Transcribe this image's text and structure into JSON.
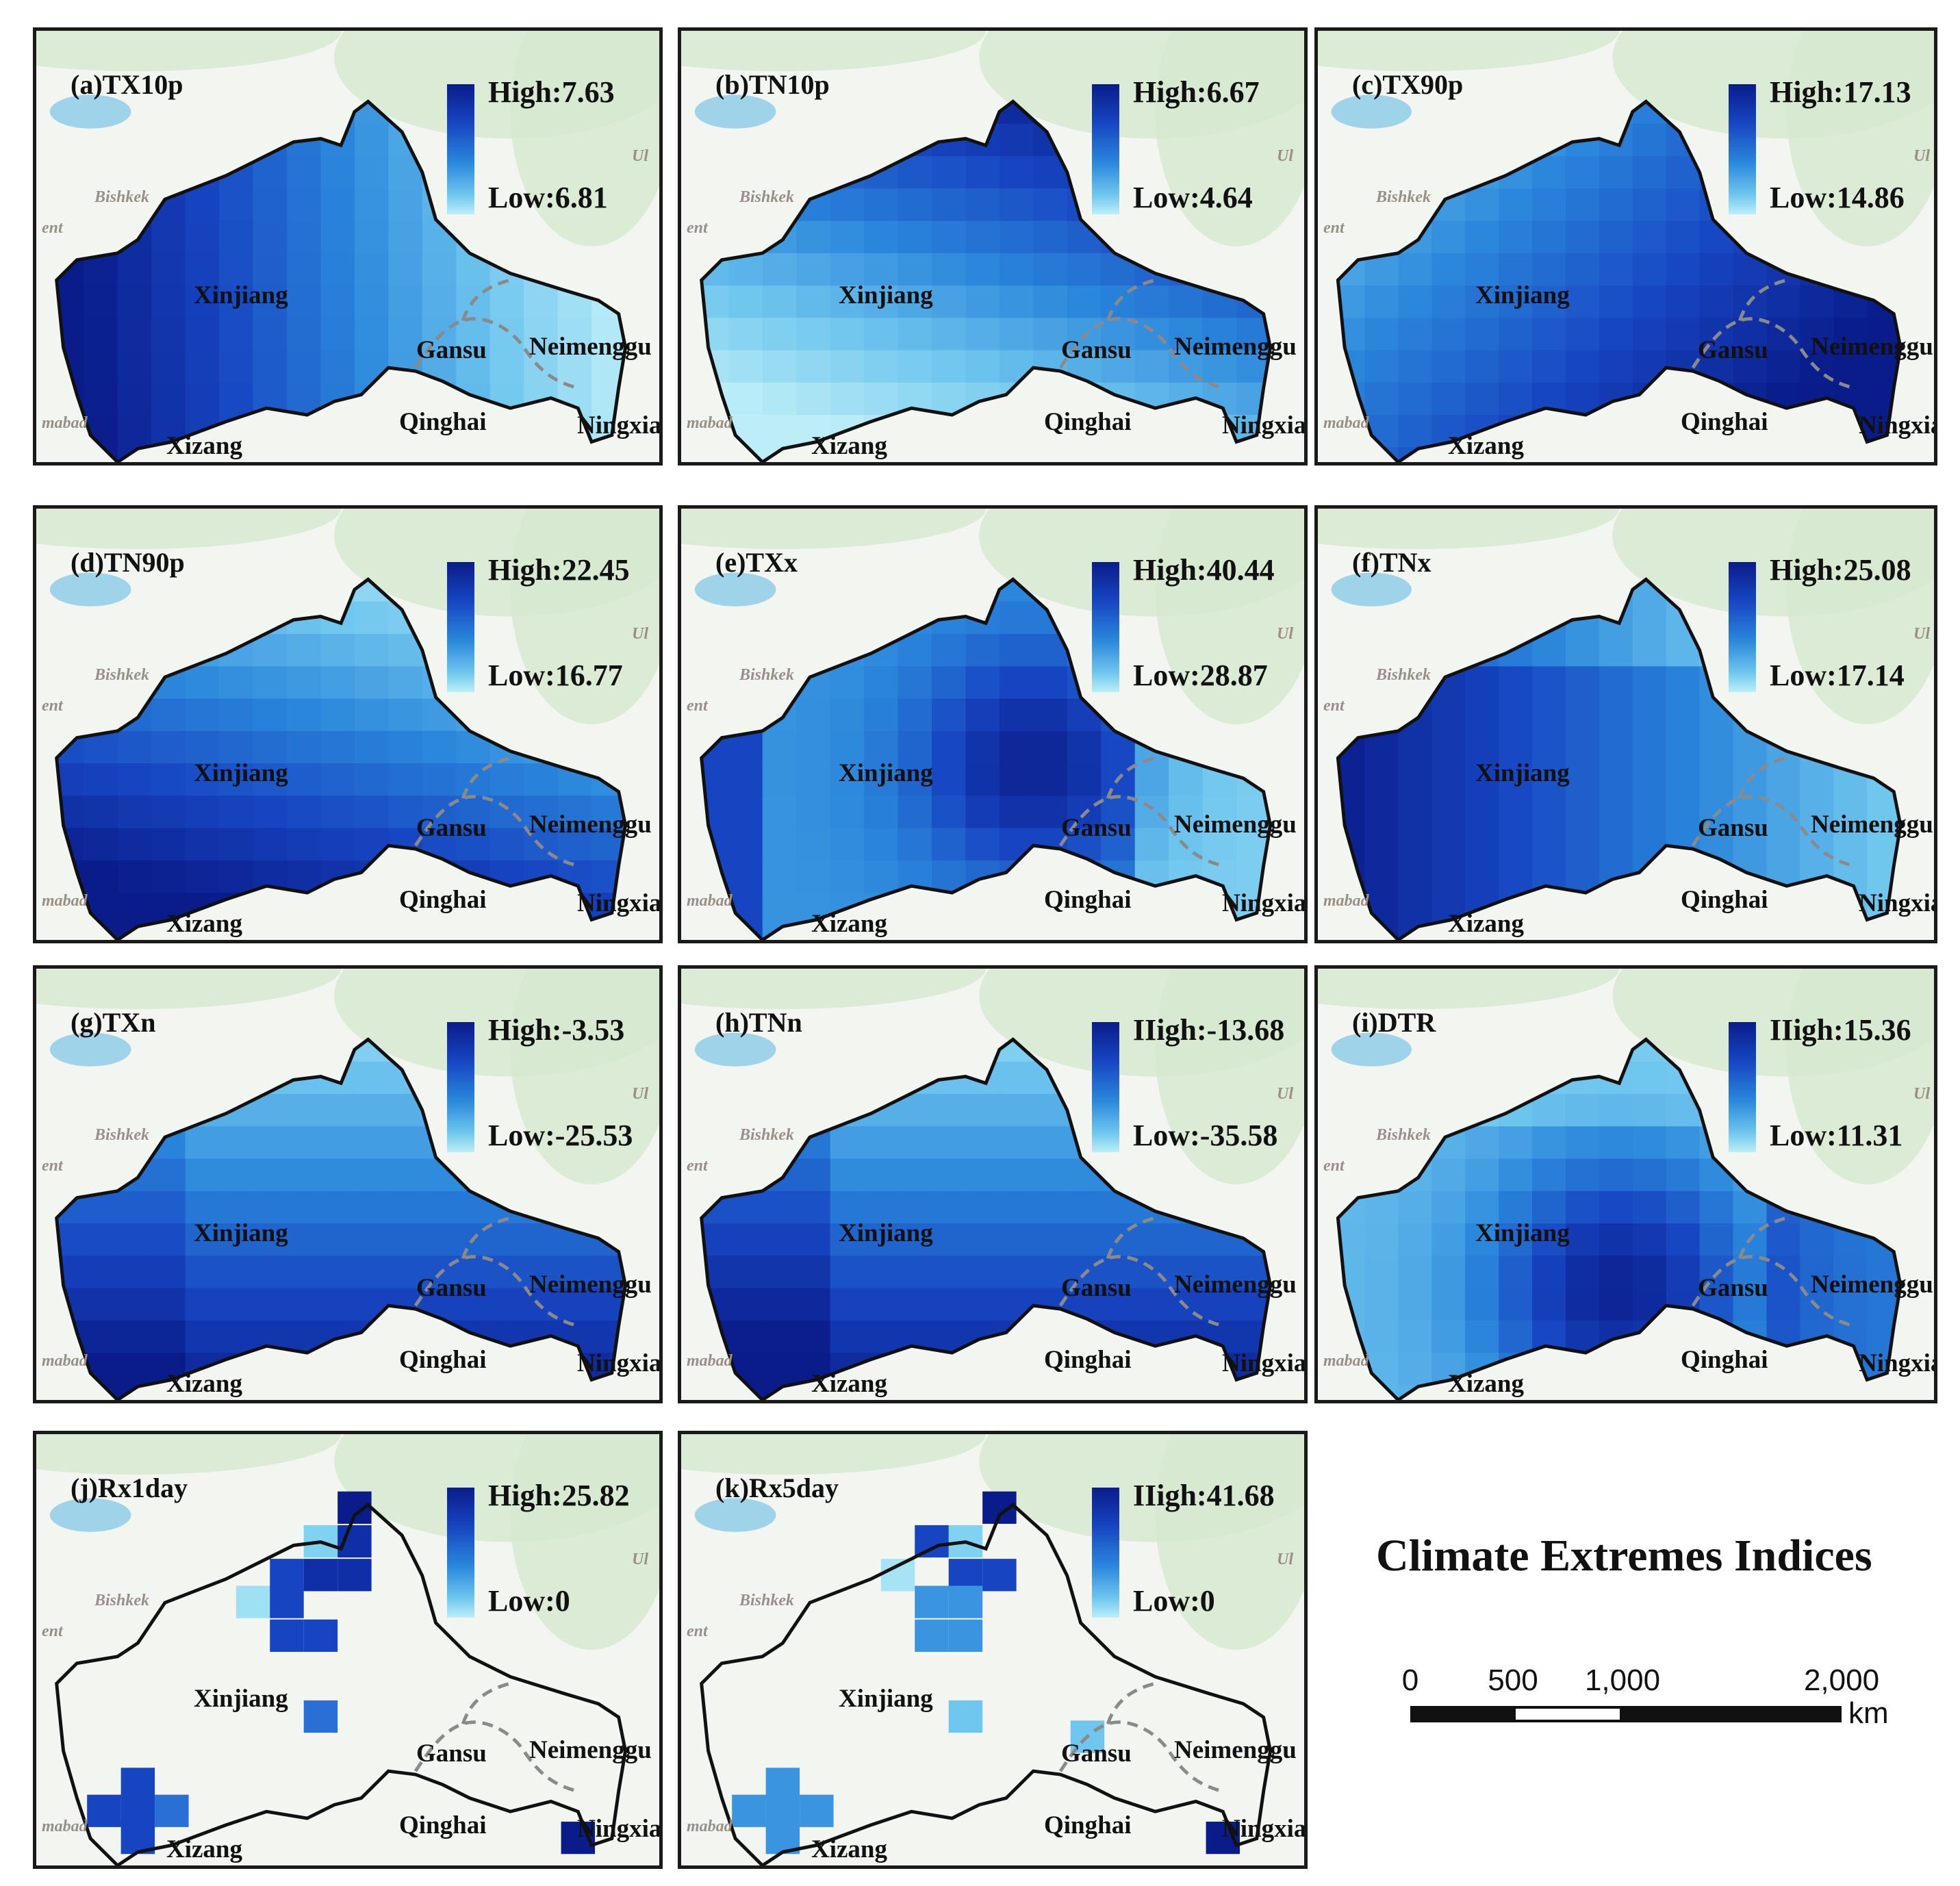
{
  "panels": [
    {
      "title": "(a)TX10p",
      "high": "High:7.63",
      "low": "Low:6.81"
    },
    {
      "title": "(b)TN10p",
      "high": "High:6.67",
      "low": "Low:4.64"
    },
    {
      "title": "(c)TX90p",
      "high": "High:17.13",
      "low": "Low:14.86"
    },
    {
      "title": "(d)TN90p",
      "high": "High:22.45",
      "low": "Low:16.77"
    },
    {
      "title": "(e)TXx",
      "high": "High:40.44",
      "low": "Low:28.87"
    },
    {
      "title": "(f)TNx",
      "high": "High:25.08",
      "low": "Low:17.14"
    },
    {
      "title": "(g)TXn",
      "high": "High:-3.53",
      "low": "Low:-25.53"
    },
    {
      "title": "(h)TNn",
      "high": "IIigh:-13.68",
      "low": "Low:-35.58"
    },
    {
      "title": "(i)DTR",
      "high": "IIigh:15.36",
      "low": "Low:11.31"
    },
    {
      "title": "(j)Rx1day",
      "high": "High:25.82",
      "low": "Low:0"
    },
    {
      "title": "(k)Rx5day",
      "high": "IIigh:41.68",
      "low": "Low:0"
    }
  ],
  "map_labels": {
    "xinjiang": "Xinjiang",
    "gansu": "Gansu",
    "neimenggu": "Neimenggu",
    "qinghai": "Qinghai",
    "ningxia": "Ningxia",
    "xizang": "Xizang",
    "bishkek": "Bishkek",
    "ent": "ent",
    "mabad": "mabad",
    "ul": "Ul"
  },
  "figure_title": "Climate Extremes Indices",
  "scale_bar": {
    "ticks": [
      "0",
      "500",
      "1,000",
      "2,000"
    ],
    "unit": "km"
  },
  "colors": {
    "ramp_high": "#0a1c8a",
    "ramp_low": "#bdeef8",
    "border": "#111111"
  }
}
